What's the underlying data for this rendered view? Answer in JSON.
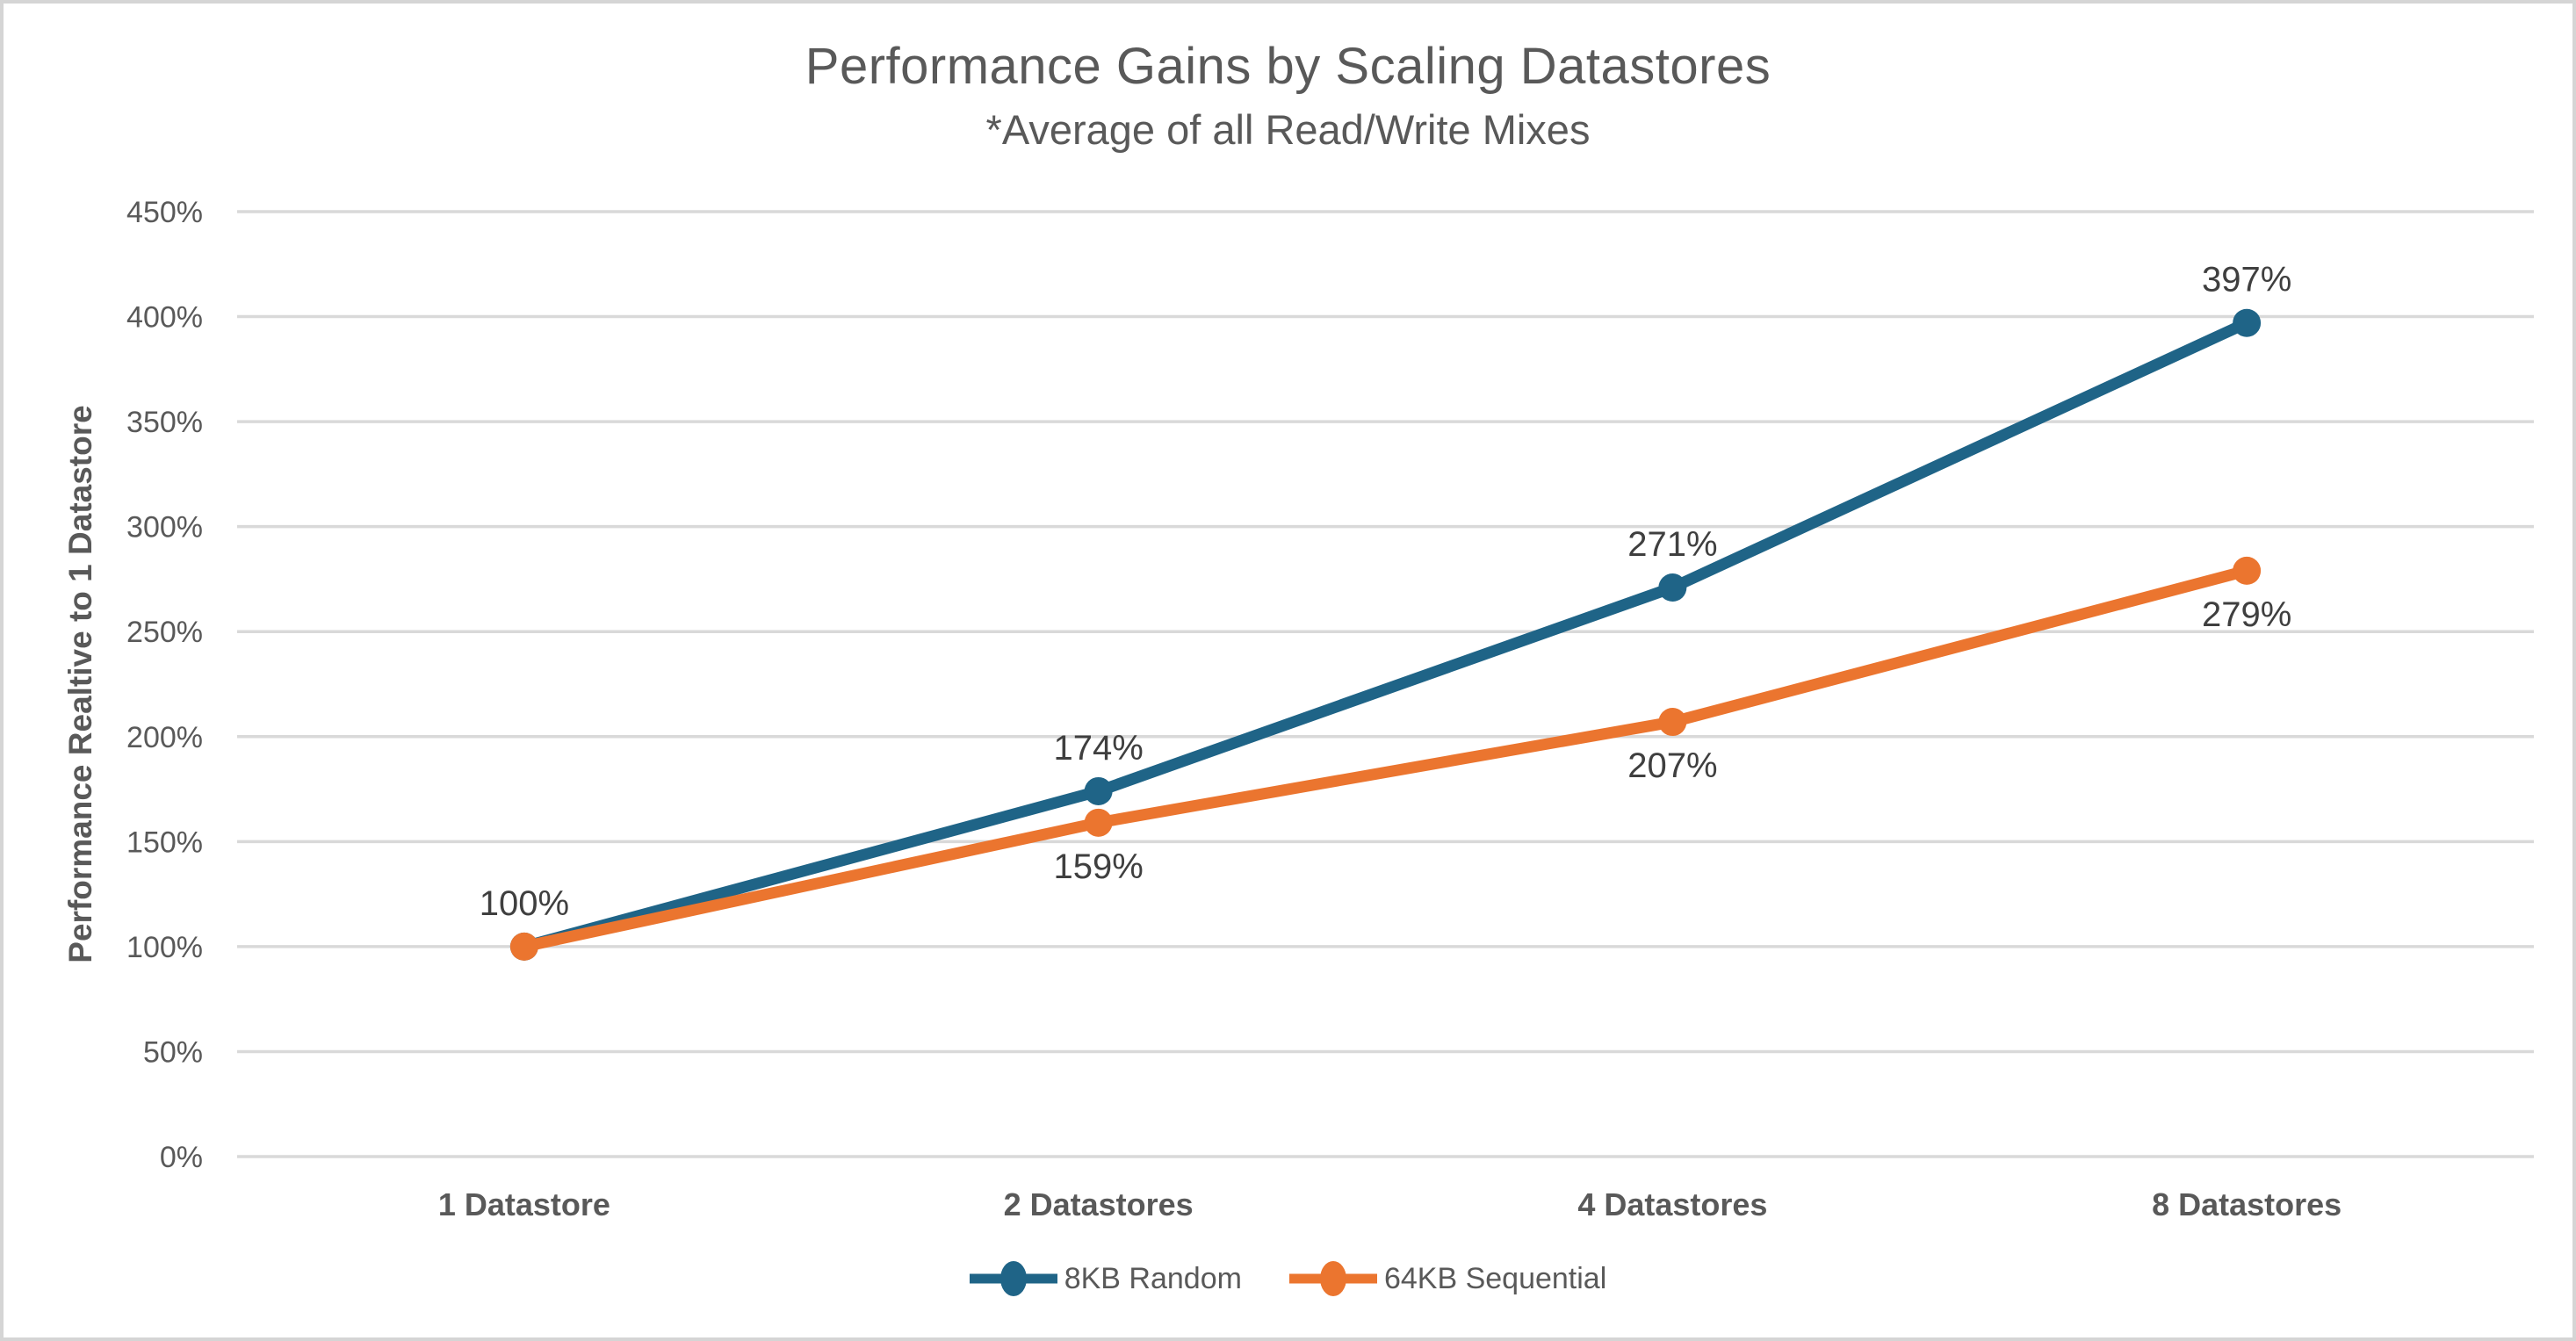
{
  "canvas": {
    "background": "#FFFFFF",
    "border_color": "#D5D5D5"
  },
  "chart_data": {
    "type": "line",
    "title": "Performance Gains by Scaling Datastores",
    "subtitle": "*Average of all Read/Write Mixes",
    "ylabel": "Performance Realtive to 1 Datastore",
    "xlabel": "",
    "categories": [
      "1 Datastore",
      "2 Datastores",
      "4 Datastores",
      "8 Datastores"
    ],
    "series": [
      {
        "name": "8KB Random",
        "color": "#1F6487",
        "values": [
          100,
          174,
          271,
          397
        ],
        "labels": [
          "100%",
          "174%",
          "271%",
          "397%"
        ],
        "label_position": "above"
      },
      {
        "name": "64KB Sequential",
        "color": "#EB752F",
        "values": [
          100,
          159,
          207,
          279
        ],
        "labels": [
          "",
          "159%",
          "207%",
          "279%"
        ],
        "label_position": "below"
      }
    ],
    "ylim": [
      0,
      450
    ],
    "ytick_step": 50,
    "ytick_suffix": "%",
    "grid": "horizontal",
    "gridline_color": "#D9D9D9",
    "legend_position": "bottom",
    "axis_text_color": "#595959",
    "data_label_color": "#3F3F3F"
  }
}
